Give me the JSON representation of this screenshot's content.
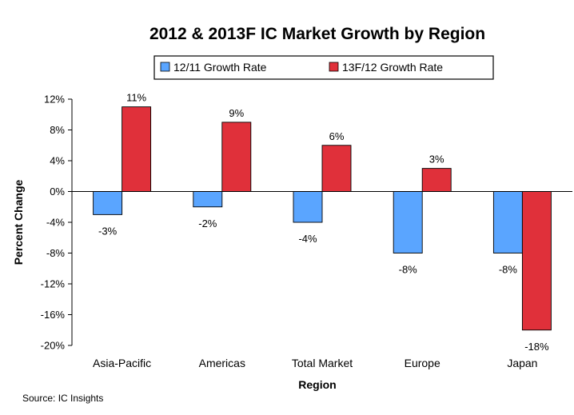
{
  "chart_data": {
    "type": "bar",
    "title": "2012 & 2013F IC Market Growth by Region",
    "xlabel": "Region",
    "ylabel": "Percent Change",
    "categories": [
      "Asia-Pacific",
      "Americas",
      "Total Market",
      "Europe",
      "Japan"
    ],
    "series": [
      {
        "name": "12/11 Growth Rate",
        "values": [
          -3,
          -2,
          -4,
          -8,
          -8
        ],
        "color": "#5aa5ff"
      },
      {
        "name": "13F/12 Growth Rate",
        "values": [
          11,
          9,
          6,
          3,
          -18
        ],
        "color": "#e0303a"
      }
    ],
    "ylim": [
      -20,
      12
    ],
    "yticks": [
      12,
      8,
      4,
      0,
      -4,
      -8,
      -12,
      -16,
      -20
    ],
    "value_suffix": "%",
    "legend_position": "top-center",
    "grid": false
  },
  "source": "Source: IC Insights"
}
